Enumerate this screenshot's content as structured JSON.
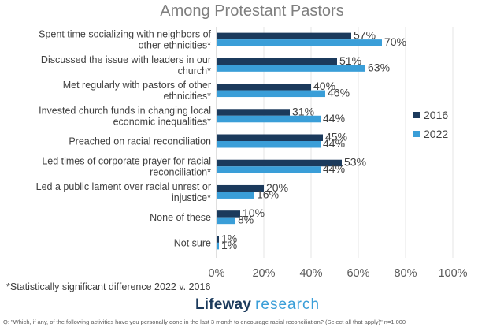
{
  "chart_data": {
    "type": "bar",
    "orientation": "horizontal",
    "title": "Among Protestant Pastors",
    "categories": [
      [
        "Spent time socializing with neighbors of",
        "other ethnicities*"
      ],
      [
        "Discussed the issue with leaders in our",
        "church*"
      ],
      [
        "Met regularly with pastors of other",
        "ethnicities*"
      ],
      [
        "Invested church funds in changing local",
        "economic inequalities*"
      ],
      [
        "Preached on racial reconciliation"
      ],
      [
        "Led times of corporate prayer for racial",
        "reconciliation*"
      ],
      [
        "Led a public lament over racial unrest or",
        "injustice*"
      ],
      [
        "None of these"
      ],
      [
        "Not sure"
      ]
    ],
    "series": [
      {
        "name": "2016",
        "color": "#1b3a5c",
        "values": [
          57,
          51,
          40,
          31,
          45,
          53,
          20,
          10,
          1
        ],
        "labels": [
          "57%",
          "51%",
          "40%",
          "31%",
          "45%",
          "53%",
          "20%",
          "10%",
          "1%"
        ]
      },
      {
        "name": "2022",
        "color": "#3a9ed8",
        "values": [
          70,
          63,
          46,
          44,
          44,
          44,
          16,
          8,
          1
        ],
        "labels": [
          "70%",
          "63%",
          "46%",
          "44%",
          "44%",
          "44%",
          "16%",
          "8%",
          "1%"
        ]
      }
    ],
    "xlim": [
      0,
      100
    ],
    "xticks": [
      0,
      20,
      40,
      60,
      80,
      100
    ],
    "xtick_labels": [
      "0%",
      "20%",
      "40%",
      "60%",
      "80%",
      "100%"
    ],
    "legend": "right",
    "grid": "vertical"
  },
  "footnote": "*Statistically significant difference 2022 v. 2016",
  "logo": {
    "brand": "Lifeway",
    "sub": "research"
  },
  "question": "Q: \"Which, if any, of the following activities have you personally done in the last 3 month to encourage racial reconciliation? (Select all that apply)\" n=1,000"
}
